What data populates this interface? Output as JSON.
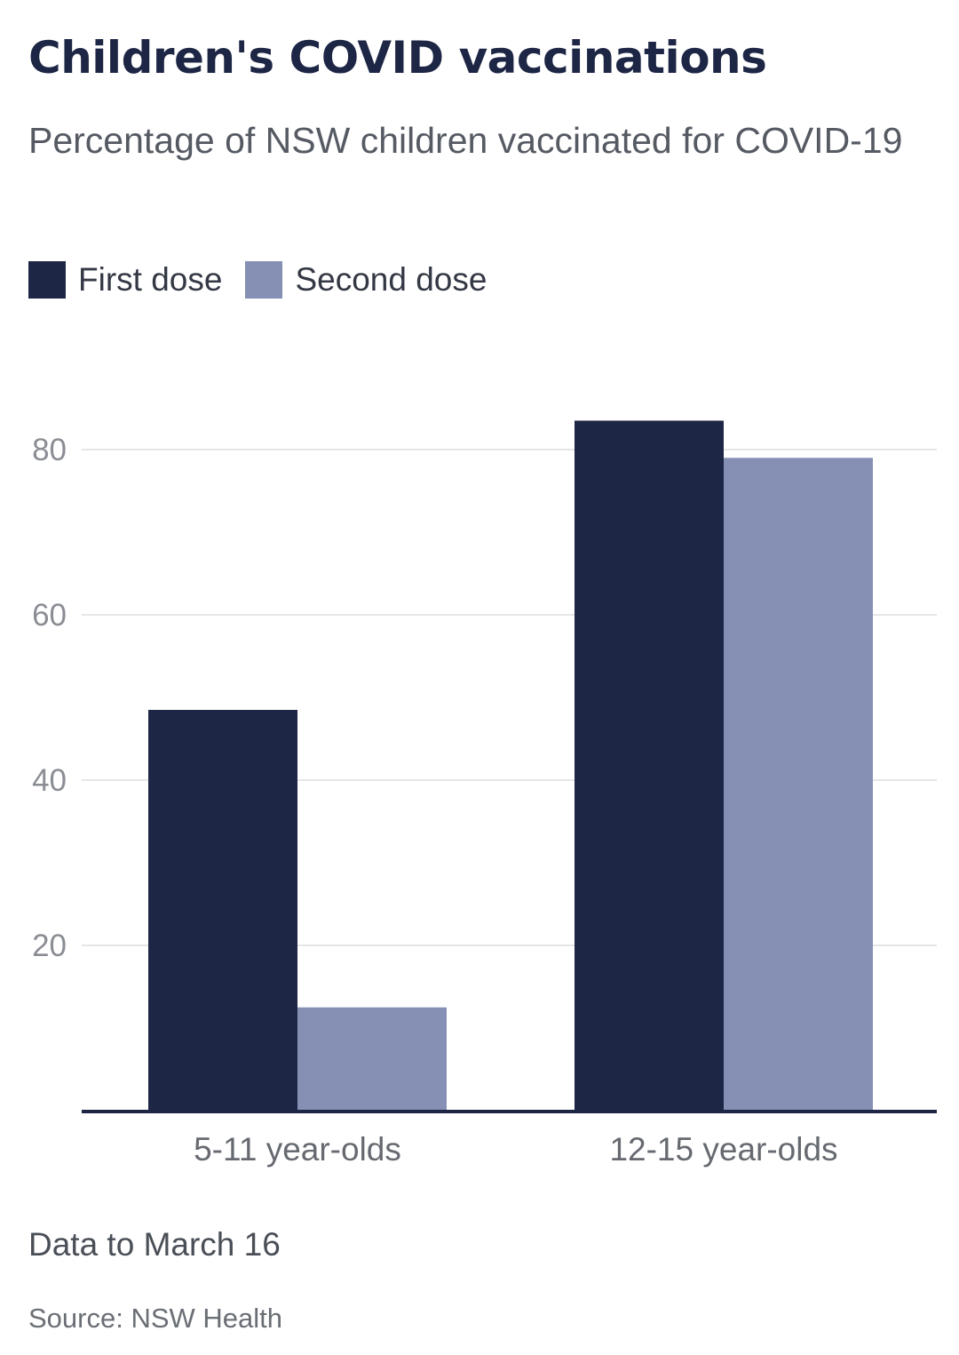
{
  "header": {
    "title": "Children's COVID vaccinations",
    "subtitle": "Percentage of NSW children vaccinated for COVID-19"
  },
  "legend": {
    "items": [
      {
        "label": "First dose",
        "color": "#1e2645"
      },
      {
        "label": "Second dose",
        "color": "#8690b5"
      }
    ]
  },
  "footer": {
    "note": "Data to March 16",
    "source": "Source: NSW Health"
  },
  "chart_data": {
    "type": "bar",
    "categories": [
      "5-11 year-olds",
      "12-15 year-olds"
    ],
    "series": [
      {
        "name": "First dose",
        "values": [
          48.5,
          83.5
        ],
        "color": "#1e2645"
      },
      {
        "name": "Second dose",
        "values": [
          12.5,
          79
        ],
        "color": "#8690b5"
      }
    ],
    "title": "Children's COVID vaccinations",
    "subtitle": "Percentage of NSW children vaccinated for COVID-19",
    "xlabel": "",
    "ylabel": "",
    "ylim": [
      0,
      80
    ],
    "yticks": [
      20,
      40,
      60,
      80
    ],
    "grid": true,
    "legend_position": "top-left"
  }
}
